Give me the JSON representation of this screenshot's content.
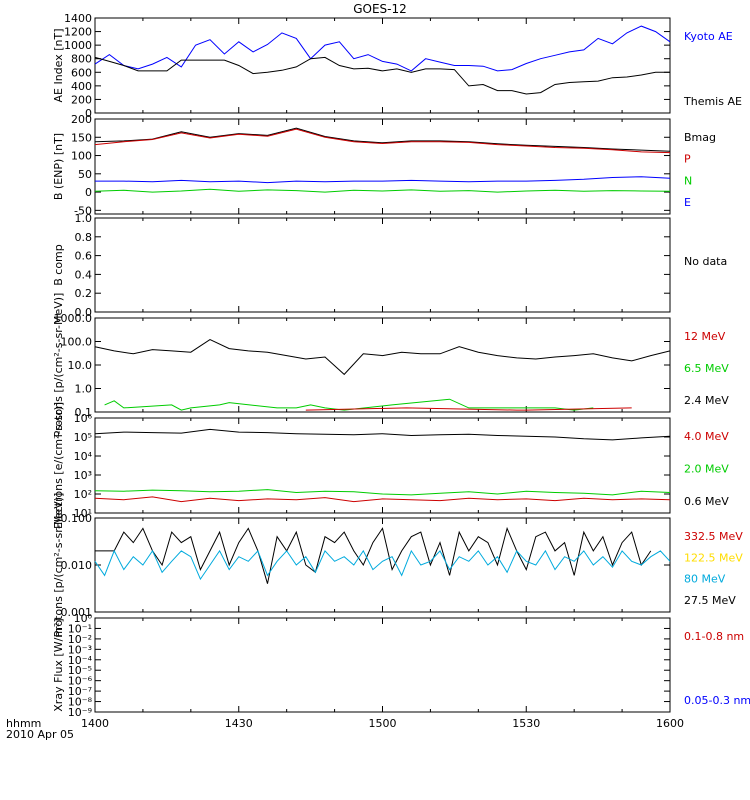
{
  "title": "GOES-12",
  "footer": {
    "line1": "hhmm",
    "line2": "2010 Apr 05"
  },
  "x_ticks": [
    "1400",
    "1430",
    "1500",
    "1530",
    "1600"
  ],
  "colors": {
    "black": "#000000",
    "red": "#cc0000",
    "green": "#00cc00",
    "blue": "#0000ff",
    "cyan": "#00aadd",
    "yellow": "#ffdd00"
  },
  "chart_data": [
    {
      "type": "line",
      "ylabel": "AE Index [nT]",
      "ylim": [
        0,
        1400
      ],
      "yticks": [
        "0",
        "200",
        "400",
        "600",
        "800",
        "1000",
        "1200",
        "1400"
      ],
      "legend": [
        {
          "label": "Kyoto AE",
          "color": "blue"
        },
        {
          "label": "Themis AE",
          "color": "black"
        }
      ],
      "series": [
        {
          "name": "Kyoto AE",
          "color": "blue",
          "x": [
            0,
            3,
            6,
            9,
            12,
            15,
            18,
            21,
            24,
            27,
            30,
            33,
            36,
            39,
            42,
            45,
            48,
            51,
            54,
            57,
            60,
            63,
            66,
            69,
            72,
            75,
            78,
            81,
            84,
            87,
            90,
            93,
            96,
            99,
            102,
            105,
            108,
            111,
            114,
            117,
            120
          ],
          "y": [
            720,
            860,
            700,
            650,
            720,
            820,
            680,
            1000,
            1080,
            870,
            1050,
            900,
            1010,
            1180,
            1100,
            800,
            1000,
            1050,
            800,
            860,
            760,
            720,
            620,
            800,
            750,
            700,
            700,
            690,
            620,
            640,
            730,
            800,
            850,
            900,
            930,
            1100,
            1020,
            1180,
            1280,
            1200,
            1050
          ]
        },
        {
          "name": "Themis AE",
          "color": "black",
          "x": [
            0,
            3,
            6,
            9,
            12,
            15,
            18,
            21,
            24,
            27,
            30,
            33,
            36,
            39,
            42,
            45,
            48,
            51,
            54,
            57,
            60,
            63,
            66,
            69,
            72,
            75,
            78,
            81,
            84,
            87,
            90,
            93,
            96,
            99,
            102,
            105,
            108,
            111,
            114,
            117,
            120
          ],
          "y": [
            820,
            760,
            700,
            620,
            620,
            620,
            780,
            780,
            780,
            780,
            700,
            580,
            600,
            630,
            680,
            800,
            820,
            700,
            650,
            660,
            620,
            650,
            600,
            650,
            650,
            640,
            400,
            420,
            330,
            330,
            280,
            300,
            420,
            450,
            460,
            470,
            520,
            530,
            560,
            600,
            600
          ]
        }
      ]
    },
    {
      "type": "line",
      "ylabel": "B (ENP) [nT]",
      "ylim": [
        -60,
        200
      ],
      "yticks": [
        "-50",
        "0",
        "50",
        "100",
        "150",
        "200"
      ],
      "legend": [
        {
          "label": "Bmag",
          "color": "black"
        },
        {
          "label": "P",
          "color": "red"
        },
        {
          "label": "N",
          "color": "green"
        },
        {
          "label": "E",
          "color": "blue"
        }
      ],
      "series": [
        {
          "name": "Bmag",
          "color": "black",
          "x": [
            0,
            6,
            12,
            18,
            24,
            30,
            36,
            42,
            48,
            54,
            60,
            66,
            72,
            78,
            84,
            90,
            96,
            102,
            108,
            114,
            120
          ],
          "y": [
            138,
            140,
            145,
            165,
            150,
            160,
            155,
            175,
            152,
            140,
            135,
            140,
            140,
            138,
            132,
            128,
            125,
            122,
            118,
            115,
            112
          ]
        },
        {
          "name": "P",
          "color": "red",
          "x": [
            0,
            6,
            12,
            18,
            24,
            30,
            36,
            42,
            48,
            54,
            60,
            66,
            72,
            78,
            84,
            90,
            96,
            102,
            108,
            114,
            120
          ],
          "y": [
            130,
            138,
            144,
            162,
            148,
            158,
            153,
            172,
            150,
            138,
            133,
            138,
            138,
            136,
            130,
            126,
            122,
            120,
            116,
            110,
            108
          ]
        },
        {
          "name": "N",
          "color": "green",
          "x": [
            0,
            6,
            12,
            18,
            24,
            30,
            36,
            42,
            48,
            54,
            60,
            66,
            72,
            78,
            84,
            90,
            96,
            102,
            108,
            114,
            120
          ],
          "y": [
            2,
            5,
            0,
            3,
            8,
            2,
            6,
            4,
            0,
            5,
            3,
            6,
            2,
            4,
            0,
            3,
            5,
            2,
            4,
            3,
            2
          ]
        },
        {
          "name": "E",
          "color": "blue",
          "x": [
            0,
            6,
            12,
            18,
            24,
            30,
            36,
            42,
            48,
            54,
            60,
            66,
            72,
            78,
            84,
            90,
            96,
            102,
            108,
            114,
            120
          ],
          "y": [
            30,
            30,
            28,
            32,
            28,
            30,
            26,
            30,
            28,
            30,
            30,
            32,
            30,
            28,
            30,
            30,
            32,
            35,
            40,
            42,
            38
          ]
        }
      ]
    },
    {
      "type": "line",
      "ylabel": "B comp",
      "ylim": [
        0,
        1
      ],
      "yticks": [
        "0.0",
        "0.2",
        "0.4",
        "0.6",
        "0.8",
        "1.0"
      ],
      "legend": [
        {
          "label": "No data",
          "color": "black"
        }
      ],
      "series": []
    },
    {
      "type": "line",
      "ylabel": "Protons [p/(cm²-s-sr-MeV)]",
      "log": true,
      "ylim": [
        0.1,
        1000
      ],
      "yticks": [
        "0.1",
        "1.0",
        "10.0",
        "100.0",
        "1000.0"
      ],
      "legend": [
        {
          "label": "12 MeV",
          "color": "red"
        },
        {
          "label": "6.5 MeV",
          "color": "green"
        },
        {
          "label": "2.4 MeV",
          "color": "black"
        }
      ],
      "series": [
        {
          "name": "2.4 MeV",
          "color": "black",
          "x": [
            0,
            4,
            8,
            12,
            16,
            20,
            24,
            28,
            32,
            36,
            40,
            44,
            48,
            52,
            56,
            60,
            64,
            68,
            72,
            76,
            80,
            84,
            88,
            92,
            96,
            100,
            104,
            108,
            112,
            116,
            120
          ],
          "y": [
            60,
            40,
            30,
            45,
            40,
            35,
            120,
            50,
            40,
            35,
            25,
            18,
            22,
            4,
            30,
            25,
            35,
            30,
            30,
            60,
            35,
            25,
            20,
            18,
            22,
            25,
            30,
            20,
            15,
            25,
            40
          ]
        },
        {
          "name": "6.5 MeV",
          "color": "green",
          "x": [
            2,
            4,
            6,
            16,
            18,
            20,
            26,
            28,
            38,
            42,
            45,
            48,
            52,
            62,
            74,
            78,
            96,
            100,
            104
          ],
          "y": [
            0.2,
            0.3,
            0.15,
            0.2,
            0.12,
            0.15,
            0.2,
            0.25,
            0.15,
            0.15,
            0.2,
            0.15,
            0.12,
            0.2,
            0.35,
            0.15,
            0.15,
            0.12,
            0.15
          ]
        },
        {
          "name": "12 MeV",
          "color": "red",
          "x": [
            44,
            65,
            88,
            90,
            112
          ],
          "y": [
            0.12,
            0.15,
            0.12,
            0.12,
            0.15
          ]
        }
      ]
    },
    {
      "type": "line",
      "ylabel": "Electrons [e/(cm²-s-sr)]",
      "log": true,
      "ylim": [
        10,
        1000000
      ],
      "yticks": [
        "10¹",
        "10²",
        "10³",
        "10⁴",
        "10⁵",
        "10⁶"
      ],
      "legend": [
        {
          "label": "4.0 MeV",
          "color": "red"
        },
        {
          "label": "2.0 MeV",
          "color": "green"
        },
        {
          "label": "0.6 MeV",
          "color": "black"
        }
      ],
      "series": [
        {
          "name": "0.6 MeV",
          "color": "black",
          "x": [
            0,
            6,
            12,
            18,
            24,
            30,
            36,
            42,
            48,
            54,
            60,
            66,
            72,
            78,
            84,
            90,
            96,
            102,
            108,
            114,
            120
          ],
          "y": [
            150000,
            180000,
            170000,
            160000,
            250000,
            180000,
            170000,
            150000,
            140000,
            130000,
            150000,
            120000,
            130000,
            140000,
            120000,
            110000,
            100000,
            80000,
            70000,
            90000,
            110000
          ]
        },
        {
          "name": "2.0 MeV",
          "color": "green",
          "x": [
            0,
            6,
            12,
            18,
            24,
            30,
            36,
            42,
            48,
            54,
            60,
            66,
            72,
            78,
            84,
            90,
            96,
            102,
            108,
            114,
            120
          ],
          "y": [
            150,
            140,
            160,
            150,
            130,
            140,
            170,
            120,
            140,
            130,
            100,
            90,
            110,
            130,
            100,
            140,
            120,
            110,
            90,
            140,
            120
          ]
        },
        {
          "name": "4.0 MeV",
          "color": "red",
          "x": [
            0,
            6,
            12,
            18,
            24,
            30,
            36,
            42,
            48,
            54,
            60,
            66,
            72,
            78,
            84,
            90,
            96,
            102,
            108,
            114,
            120
          ],
          "y": [
            60,
            50,
            70,
            40,
            60,
            45,
            55,
            50,
            65,
            40,
            55,
            50,
            45,
            60,
            50,
            55,
            45,
            60,
            50,
            55,
            50
          ]
        }
      ]
    },
    {
      "type": "line",
      "ylabel": "Protons [p/(cm²-s-sr-MeV)]",
      "log": true,
      "ylim": [
        0.001,
        0.1
      ],
      "yticks": [
        "0.001",
        "0.010",
        "0.100"
      ],
      "legend": [
        {
          "label": "332.5 MeV",
          "color": "red"
        },
        {
          "label": "122.5 MeV",
          "color": "yellow"
        },
        {
          "label": "80 MeV",
          "color": "cyan"
        },
        {
          "label": "27.5 MeV",
          "color": "black"
        }
      ],
      "series": [
        {
          "name": "27.5 MeV",
          "color": "black",
          "x": [
            0,
            4,
            6,
            8,
            10,
            12,
            14,
            16,
            18,
            20,
            22,
            24,
            26,
            28,
            30,
            32,
            34,
            36,
            38,
            40,
            42,
            44,
            46,
            48,
            50,
            52,
            54,
            56,
            58,
            60,
            62,
            64,
            66,
            68,
            70,
            72,
            74,
            76,
            78,
            80,
            82,
            84,
            86,
            88,
            90,
            92,
            94,
            96,
            98,
            100,
            102,
            104,
            106,
            108,
            110,
            112,
            114,
            116
          ],
          "y": [
            0.02,
            0.02,
            0.05,
            0.03,
            0.06,
            0.02,
            0.01,
            0.05,
            0.03,
            0.04,
            0.008,
            0.02,
            0.05,
            0.01,
            0.03,
            0.06,
            0.02,
            0.004,
            0.04,
            0.02,
            0.05,
            0.01,
            0.007,
            0.04,
            0.03,
            0.05,
            0.02,
            0.01,
            0.03,
            0.06,
            0.008,
            0.02,
            0.04,
            0.05,
            0.01,
            0.03,
            0.006,
            0.05,
            0.02,
            0.04,
            0.03,
            0.01,
            0.06,
            0.02,
            0.008,
            0.04,
            0.05,
            0.02,
            0.03,
            0.006,
            0.05,
            0.02,
            0.04,
            0.01,
            0.03,
            0.05,
            0.01,
            0.02
          ]
        },
        {
          "name": "80 MeV",
          "color": "cyan",
          "x": [
            0,
            2,
            4,
            6,
            8,
            10,
            12,
            14,
            16,
            18,
            20,
            22,
            24,
            26,
            28,
            30,
            32,
            34,
            36,
            38,
            40,
            42,
            44,
            46,
            48,
            50,
            52,
            54,
            56,
            58,
            60,
            62,
            64,
            66,
            68,
            70,
            72,
            74,
            76,
            78,
            80,
            82,
            84,
            86,
            88,
            90,
            92,
            94,
            96,
            98,
            100,
            102,
            104,
            106,
            108,
            110,
            112,
            114,
            116,
            118,
            120
          ],
          "y": [
            0.012,
            0.006,
            0.02,
            0.008,
            0.015,
            0.01,
            0.02,
            0.007,
            0.012,
            0.02,
            0.015,
            0.005,
            0.01,
            0.02,
            0.008,
            0.015,
            0.012,
            0.02,
            0.006,
            0.012,
            0.02,
            0.01,
            0.015,
            0.007,
            0.02,
            0.012,
            0.015,
            0.01,
            0.02,
            0.008,
            0.012,
            0.015,
            0.006,
            0.02,
            0.01,
            0.012,
            0.02,
            0.008,
            0.015,
            0.012,
            0.02,
            0.01,
            0.015,
            0.007,
            0.02,
            0.012,
            0.01,
            0.02,
            0.008,
            0.015,
            0.012,
            0.02,
            0.01,
            0.015,
            0.009,
            0.02,
            0.012,
            0.01,
            0.015,
            0.02,
            0.012
          ]
        }
      ]
    },
    {
      "type": "line",
      "ylabel": "Xray Flux [W/m²]",
      "log": true,
      "ylim": [
        1e-09,
        1
      ],
      "yticks": [
        "10⁻⁹",
        "10⁻⁸",
        "10⁻⁷",
        "10⁻⁶",
        "10⁻⁵",
        "10⁻⁴",
        "10⁻³",
        "10⁻²",
        "10⁻¹",
        "10⁰"
      ],
      "legend": [
        {
          "label": "0.1-0.8 nm",
          "color": "red"
        },
        {
          "label": "0.05-0.3 nm",
          "color": "blue"
        }
      ],
      "series": []
    }
  ]
}
